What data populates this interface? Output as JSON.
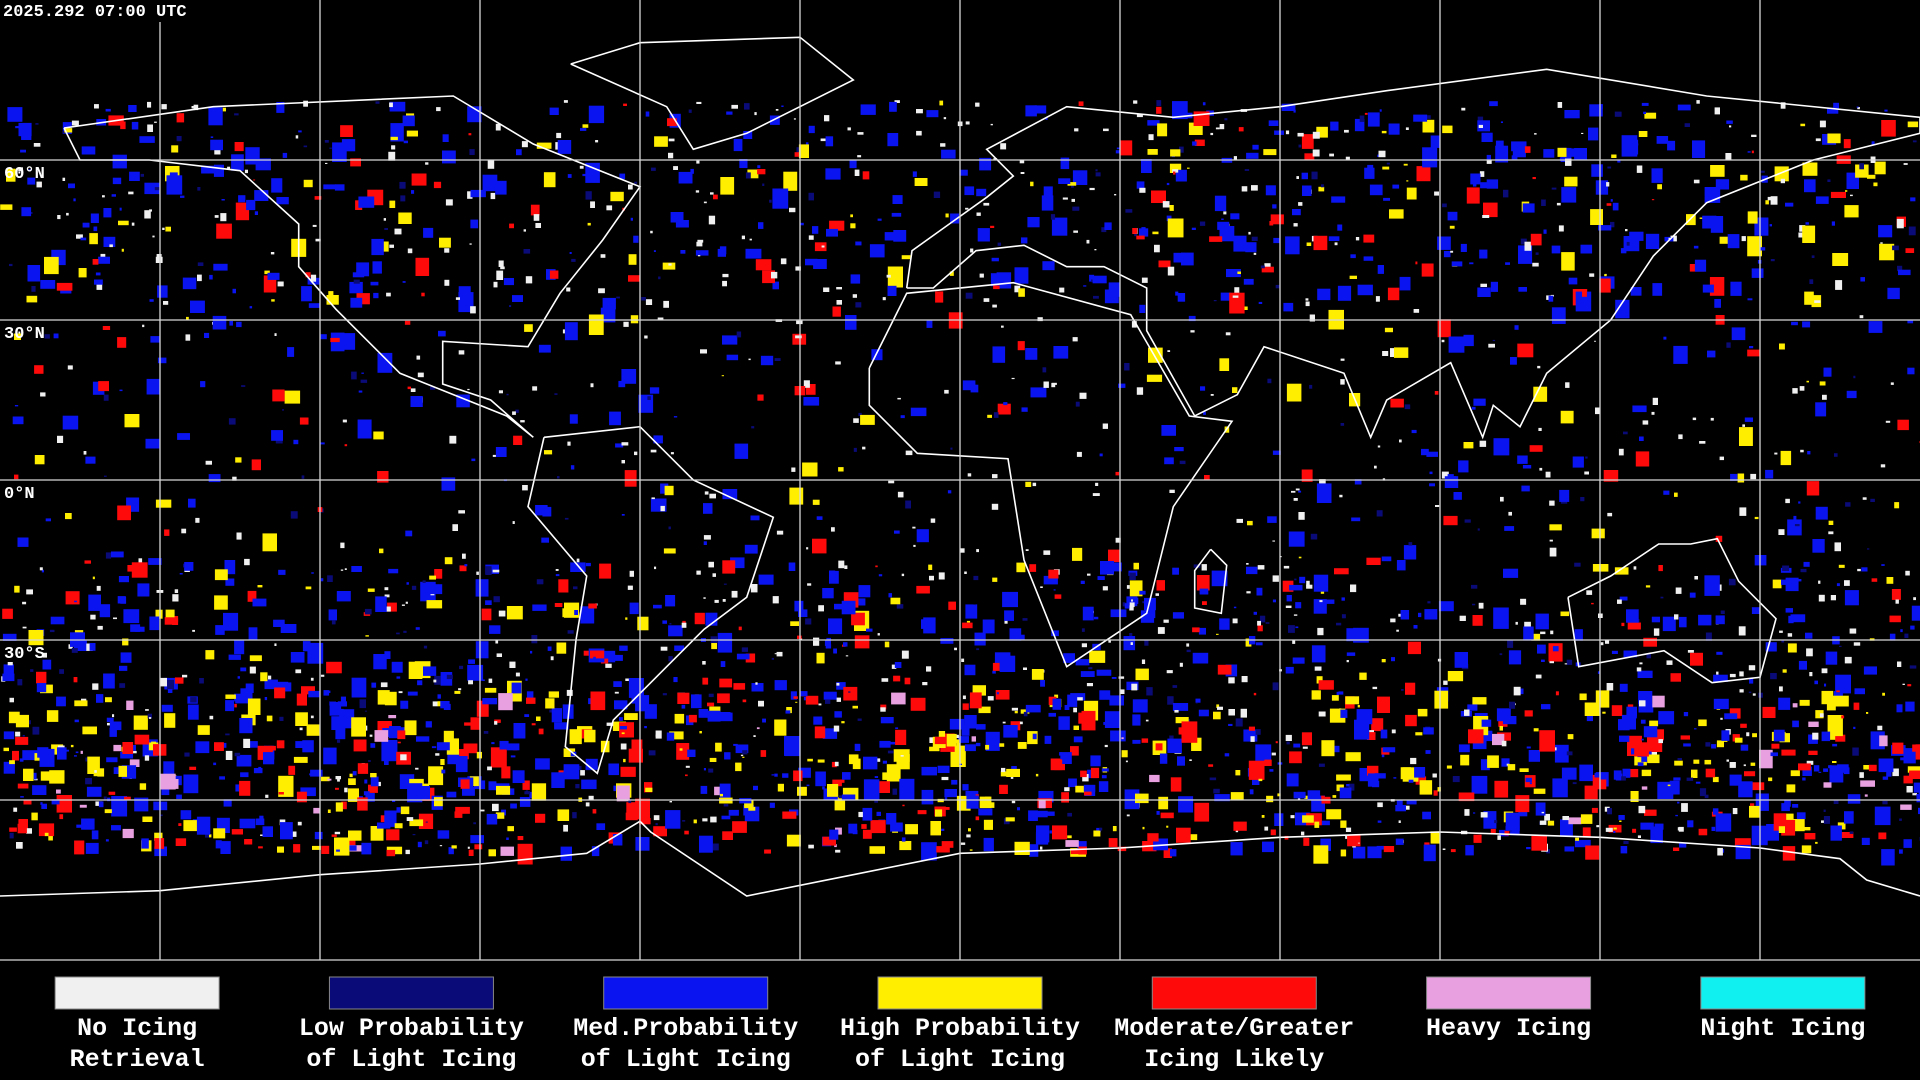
{
  "map": {
    "timestamp": "2025.292 07:00 UTC",
    "grid_labels": [
      {
        "text": "60°N",
        "lat": 60
      },
      {
        "text": "30°N",
        "lat": 30
      },
      {
        "text": "0°N",
        "lat": 0
      },
      {
        "text": "30°S",
        "lat": -30
      }
    ],
    "legend": [
      {
        "lines": [
          "No Icing",
          "Retrieval"
        ],
        "color": "#f0f0f0"
      },
      {
        "lines": [
          "Low Probability",
          "of Light Icing"
        ],
        "color": "#0a0a78"
      },
      {
        "lines": [
          "Med.Probability",
          "of Light Icing"
        ],
        "color": "#0a14f0"
      },
      {
        "lines": [
          "High Probability",
          "of Light Icing"
        ],
        "color": "#ffee00"
      },
      {
        "lines": [
          "Moderate/Greater",
          "Icing Likely"
        ],
        "color": "#ff0a0a"
      },
      {
        "lines": [
          "Heavy Icing"
        ],
        "color": "#e8a0e0"
      },
      {
        "lines": [
          "Night Icing"
        ],
        "color": "#10f0f0"
      }
    ]
  }
}
